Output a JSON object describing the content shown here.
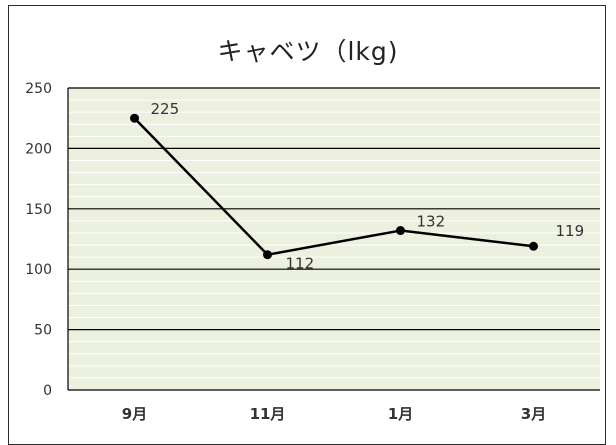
{
  "chart_data": {
    "type": "line",
    "title": "キャベツ（lkg)",
    "categories": [
      "9月",
      "11月",
      "1月",
      "3月"
    ],
    "series": [
      {
        "values": [
          225,
          112,
          132,
          119
        ],
        "color": "#000000"
      }
    ],
    "data_labels": [
      "225",
      "112",
      "132",
      "119"
    ],
    "ylim": [
      0,
      250
    ],
    "yticks": [
      0,
      50,
      100,
      150,
      200,
      250
    ],
    "ytick_labels": [
      "0",
      "50",
      "100",
      "150",
      "200",
      "250"
    ],
    "xlabel": "",
    "ylabel": "",
    "grid": true,
    "legend": "none",
    "colors": {
      "plot_background": "#ebf1de",
      "minor_grid": "#ffffff",
      "major_grid": "#000000",
      "line": "#000000"
    }
  }
}
